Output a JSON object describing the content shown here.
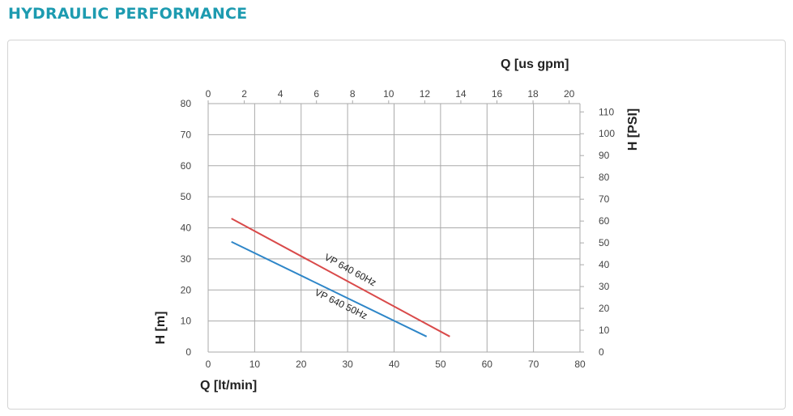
{
  "page": {
    "title": "HYDRAULIC PERFORMANCE"
  },
  "colors": {
    "title": "#1d9bb0",
    "grid": "#aaaaaa",
    "series_60hz": "#d94a4a",
    "series_50hz": "#2e86c8"
  },
  "chart_data": {
    "type": "line",
    "x_bottom": {
      "label": "Q [lt/min]",
      "range": [
        0,
        80
      ],
      "ticks": [
        0,
        10,
        20,
        30,
        40,
        50,
        60,
        70,
        80
      ]
    },
    "x_top": {
      "label": "Q [us gpm]",
      "range": [
        0,
        20.6
      ],
      "ticks": [
        0,
        2,
        4,
        6,
        8,
        10,
        12,
        14,
        16,
        18,
        20
      ]
    },
    "y_left": {
      "label": "H [m]",
      "range": [
        0,
        80
      ],
      "ticks": [
        0,
        10,
        20,
        30,
        40,
        50,
        60,
        70,
        80
      ]
    },
    "y_right": {
      "label": "H [PSI]",
      "range": [
        0,
        113.8
      ],
      "ticks": [
        0,
        10,
        20,
        30,
        40,
        50,
        60,
        70,
        80,
        90,
        100,
        110
      ]
    },
    "grid": true,
    "series": [
      {
        "name": "VP 640 60Hz",
        "color": "#d94a4a",
        "points": [
          [
            5,
            43
          ],
          [
            52,
            5
          ]
        ]
      },
      {
        "name": "VP 640 50Hz",
        "color": "#2e86c8",
        "points": [
          [
            5,
            35.5
          ],
          [
            47,
            5
          ]
        ]
      }
    ]
  }
}
